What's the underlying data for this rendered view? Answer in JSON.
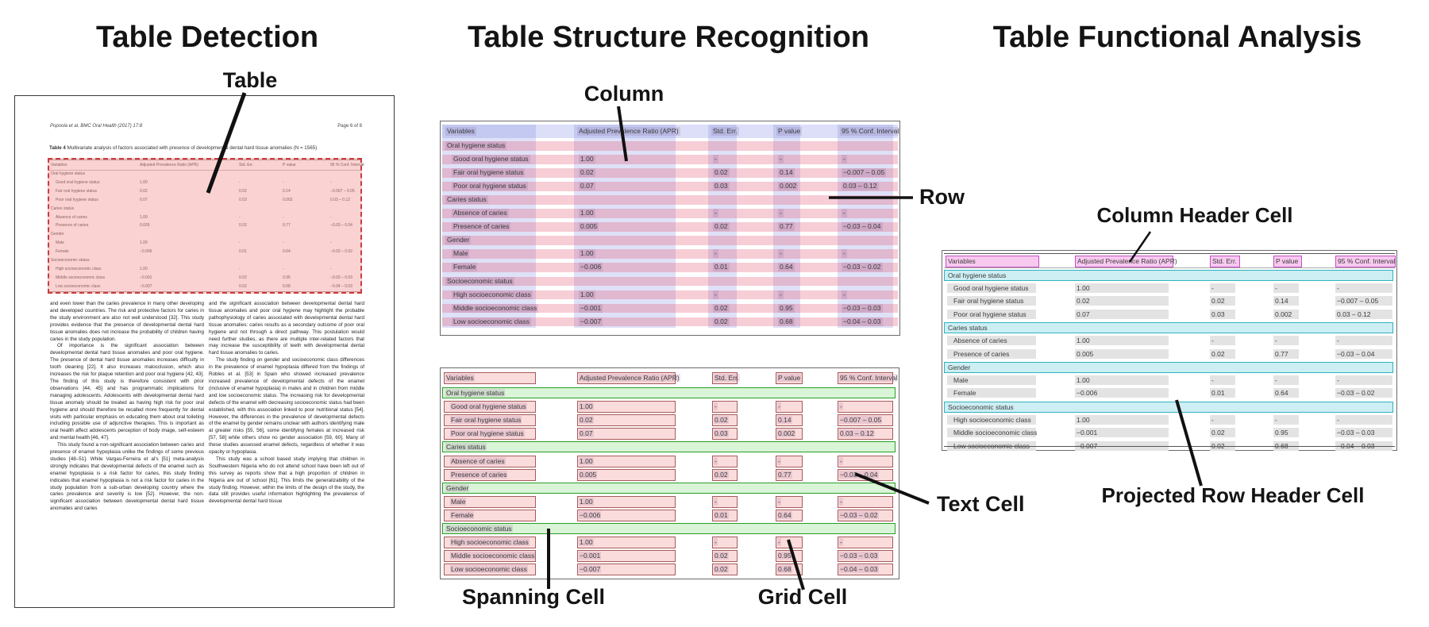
{
  "titles": {
    "detection": "Table Detection",
    "structure": "Table Structure Recognition",
    "functional": "Table Functional Analysis"
  },
  "annotations": {
    "table": "Table",
    "column": "Column",
    "row": "Row",
    "text_cell": "Text Cell",
    "spanning_cell": "Spanning Cell",
    "grid_cell": "Grid Cell",
    "column_header_cell": "Column Header Cell",
    "projected_row_header_cell": "Projected Row Header Cell"
  },
  "document": {
    "header_left": "Popoola et al. BMC Oral Health (2017) 17:8",
    "header_right": "Page 6 of 8",
    "caption_label": "Table 4",
    "caption_text": "Multivariate analysis of factors associated with presence of developmental dental hard tissue anomalies (N = 1565)",
    "body_left": [
      "and even lower than the caries prevalence in many other developing and developed countries. The risk and protective factors for caries in the study environment are also not well understood [32]. This study provides evidence that the presence of developmental dental hard tissue anomalies does not increase the probability of children having caries in the study population.",
      "Of importance is the significant association between developmental dental hard tissue anomalies and poor oral hygiene. The presence of dental hard tissue anomalies increases difficulty in tooth cleaning [22]. It also increases malocclusion, which also increases the risk for plaque retention and poor oral hygiene [42, 43]. The finding of this study is therefore consistent with prior observations [44, 45] and has programmatic implications for managing adolescents. Adolescents with developmental dental hard tissue anomaly should be treated as having high risk for poor oral hygiene and should therefore be recalled more frequently for dental visits with particular emphasis on educating them about oral toileting including possible use of adjunctive therapies. This is important as oral health affect adolescents perception of body image, self-esteem and mental health [46, 47].",
      "This study found a non-significant association between caries and presence of enamel hypoplasia unlike the findings of some previous studies [48–51]. While Vargas-Ferreira et al's [51] meta-analysis strongly indicates that developmental defects of the enamel such as enamel hypoplasia is a risk factor for caries, this study finding indicates that enamel hypoplasia is not a risk factor for caries in the study population from a sub-urban developing country where the caries prevalence and severity is low [52]. However, the non-significant association between developmental dental hard tissue anomalies and caries"
    ],
    "body_right": [
      "and the significant association between developmental dental hard tissue anomalies and poor oral hygiene may highlight the probable pathophysiology of caries associated with developmental dental hard tissue anomalies: caries results as a secondary outcome of poor oral hygiene and not through a direct pathway. This postulation would need further studies, as there are multiple inter-related factors that may increase the susceptibility of teeth with developmental dental hard tissue anomalies to caries.",
      "The study finding on gender and socioeconomic class differences in the prevalence of enamel hypoplasia differed from the findings of Robles et al. [53] in Spain who showed increased prevalence increased prevalence of developmental defects of the enamel (inclusive of enamel hypoplasia) in males and in children from middle and low socioeconomic status. The increasing risk for developmental defects of the enamel with decreasing socioeconomic status had been established, with this association linked to poor nutritional status [54]. However, the differences in the prevalence of developmental defects of the enamel by gender remains unclear with authors identifying male at greater risks [55, 56], some identifying females at increased risk [57, 58] while others show no gender association [59, 60]. Many of these studies assessed enamel defects, regardless of whether it was opacity or hypoplasia.",
      "This study was a school based study implying that children in Southwestern Nigeria who do not attend school have been left out of this survey as reports show that a high proportion of children in Nigeria are out of school [61]. This limits the generalizability of the study finding. However, within the limits of the design of the study, the data still provides useful information highlighting the prevalence of developmental dental hard tissue"
    ]
  },
  "table": {
    "columns": [
      "Variables",
      "Adjusted Prevalence Ratio (APR)",
      "Std. Err.",
      "P value",
      "95 % Conf. Interval"
    ],
    "rows": [
      {
        "section": true,
        "label": "Oral hygiene status",
        "values": [
          "",
          "",
          "",
          ""
        ]
      },
      {
        "section": false,
        "label": "Good oral hygiene status",
        "values": [
          "1.00",
          "-",
          "-",
          "-"
        ]
      },
      {
        "section": false,
        "label": "Fair oral hygiene status",
        "values": [
          "0.02",
          "0.02",
          "0.14",
          "−0.007 – 0.05"
        ]
      },
      {
        "section": false,
        "label": "Poor oral hygiene status",
        "values": [
          "0.07",
          "0.03",
          "0.002",
          "0.03 – 0.12"
        ]
      },
      {
        "section": true,
        "label": "Caries status",
        "values": [
          "",
          "",
          "",
          ""
        ]
      },
      {
        "section": false,
        "label": "Absence of caries",
        "values": [
          "1.00",
          "-",
          "-",
          "-"
        ]
      },
      {
        "section": false,
        "label": "Presence of caries",
        "values": [
          "0.005",
          "0.02",
          "0.77",
          "−0.03 – 0.04"
        ]
      },
      {
        "section": true,
        "label": "Gender",
        "values": [
          "",
          "",
          "",
          ""
        ]
      },
      {
        "section": false,
        "label": "Male",
        "values": [
          "1.00",
          "-",
          "-",
          "-"
        ]
      },
      {
        "section": false,
        "label": "Female",
        "values": [
          "−0.006",
          "0.01",
          "0.64",
          "−0.03 – 0.02"
        ]
      },
      {
        "section": true,
        "label": "Socioeconomic status",
        "values": [
          "",
          "",
          "",
          ""
        ]
      },
      {
        "section": false,
        "label": "High socioeconomic class",
        "values": [
          "1.00",
          "-",
          "-",
          "-"
        ]
      },
      {
        "section": false,
        "label": "Middle socioeconomic class",
        "values": [
          "−0.001",
          "0.02",
          "0.95",
          "−0.03 – 0.03"
        ]
      },
      {
        "section": false,
        "label": "Low socioeconomic class",
        "values": [
          "−0.007",
          "0.02",
          "0.68",
          "−0.04 – 0.03"
        ]
      }
    ]
  },
  "colors": {
    "detection_fill": "#F5C2C2",
    "detection_border": "#CC3B3B",
    "row_overlay": "#E4587A",
    "column_overlay": "#7D87E1",
    "grid_cell_fill": "#FBDCDC",
    "grid_cell_border": "#A65B5B",
    "spanning_cell_fill": "#D9F4D6",
    "spanning_cell_border": "#2A9D2A",
    "column_header_fill": "#F8C9EF",
    "column_header_border": "#C44FC4",
    "projected_row_header_fill": "#CDEEF3",
    "projected_row_header_border": "#2FB3C0",
    "text_cell_fill": "#E3E3E3"
  }
}
